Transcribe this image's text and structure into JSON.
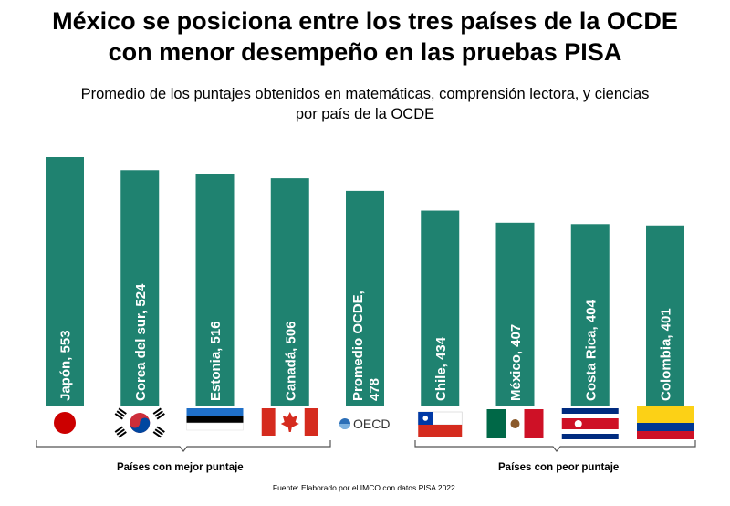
{
  "title_line1": "México se posiciona entre los tres países de la OCDE",
  "title_line2": "con menor desempeño en las pruebas PISA",
  "subtitle_line1": "Promedio de los puntajes obtenidos en matemáticas, comprensión lectora, y ciencias",
  "subtitle_line2": "por país de la OCDE",
  "source": "Fuente: Elaborado por el IMCO con datos PISA 2022.",
  "groups": {
    "best": "Países con mejor puntaje",
    "worst": "Países con peor puntaje"
  },
  "oecd_logo_text": "OECD",
  "colors": {
    "bar": "#1f8270"
  },
  "chart_data": {
    "type": "bar",
    "categories": [
      "Japón",
      "Corea del sur",
      "Estonia",
      "Canadá",
      "Promedio OCDE",
      "Chile",
      "México",
      "Costa Rica",
      "Colombia"
    ],
    "values": [
      553,
      524,
      516,
      506,
      478,
      434,
      407,
      404,
      401
    ],
    "bar_labels": [
      "Japón, 553",
      "Corea del sur, 524",
      "Estonia, 516",
      "Canadá, 506",
      "Promedio OCDE,|478",
      "Chile, 434",
      "México, 407",
      "Costa Rica, 404",
      "Colombia, 401"
    ],
    "icons": [
      "japan-flag-icon",
      "south-korea-flag-icon",
      "estonia-flag-icon",
      "canada-flag-icon",
      "oecd-logo-icon",
      "chile-flag-icon",
      "mexico-flag-icon",
      "costa-rica-flag-icon",
      "colombia-flag-icon"
    ],
    "title": "México se posiciona entre los tres países de la OCDE con menor desempeño en las pruebas PISA",
    "grid": false,
    "legend": "none"
  }
}
